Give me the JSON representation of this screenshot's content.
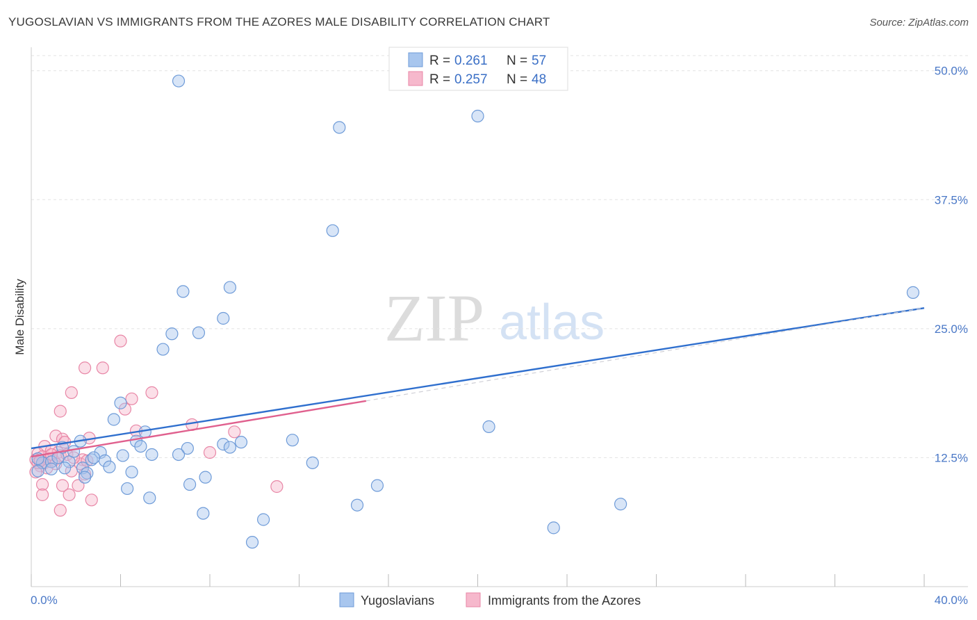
{
  "title": "YUGOSLAVIAN VS IMMIGRANTS FROM THE AZORES MALE DISABILITY CORRELATION CHART",
  "source": "Source: ZipAtlas.com",
  "watermark": {
    "part1": "ZIP",
    "part2": "atlas"
  },
  "colors": {
    "blue_fill": "#a8c6ee",
    "blue_stroke": "#6e9bd8",
    "blue_line": "#2f6fce",
    "pink_fill": "#f6b8cc",
    "pink_stroke": "#e886a6",
    "pink_line": "#e0608e",
    "grid": "#e3e3e3",
    "tick_label": "#4a78c7"
  },
  "legend": {
    "rows": [
      {
        "r_label": "R =",
        "r_value": "0.261",
        "n_label": "N =",
        "n_value": "57"
      },
      {
        "r_label": "R =",
        "r_value": "0.257",
        "n_label": "N =",
        "n_value": "48"
      }
    ]
  },
  "chart_data": {
    "type": "scatter",
    "title": "YUGOSLAVIAN VS IMMIGRANTS FROM THE AZORES MALE DISABILITY CORRELATION CHART",
    "xlabel": "",
    "ylabel": "Male Disability",
    "xlim": [
      0,
      40
    ],
    "ylim": [
      0,
      52
    ],
    "x_tick_labels": [
      "0.0%",
      "40.0%"
    ],
    "y_ticks": [
      12.5,
      25.0,
      37.5,
      50.0
    ],
    "y_tick_labels": [
      "12.5%",
      "25.0%",
      "37.5%",
      "50.0%"
    ],
    "grid": true,
    "legend_position": "top-center",
    "series": [
      {
        "name": "Yugoslavians",
        "color": "#a8c6ee",
        "R": 0.261,
        "N": 57,
        "trend": {
          "x0": 0,
          "y0": 13.4,
          "x1": 40,
          "y1": 27.0
        },
        "points": [
          [
            6.6,
            49.0
          ],
          [
            13.8,
            44.5
          ],
          [
            20.0,
            45.6
          ],
          [
            13.5,
            34.5
          ],
          [
            39.5,
            28.5
          ],
          [
            6.8,
            28.6
          ],
          [
            8.9,
            29.0
          ],
          [
            8.6,
            26.0
          ],
          [
            6.3,
            24.5
          ],
          [
            7.5,
            24.6
          ],
          [
            5.9,
            23.0
          ],
          [
            4.0,
            17.8
          ],
          [
            3.7,
            16.2
          ],
          [
            5.1,
            15.0
          ],
          [
            20.5,
            15.5
          ],
          [
            2.2,
            14.1
          ],
          [
            4.7,
            14.1
          ],
          [
            4.9,
            13.6
          ],
          [
            7.0,
            13.4
          ],
          [
            8.6,
            13.8
          ],
          [
            8.9,
            13.5
          ],
          [
            9.4,
            14.0
          ],
          [
            11.7,
            14.2
          ],
          [
            3.1,
            13.0
          ],
          [
            4.1,
            12.7
          ],
          [
            5.4,
            12.8
          ],
          [
            6.6,
            12.8
          ],
          [
            2.7,
            12.3
          ],
          [
            2.8,
            12.5
          ],
          [
            3.3,
            12.2
          ],
          [
            0.5,
            12.0
          ],
          [
            0.9,
            12.1
          ],
          [
            1.2,
            12.5
          ],
          [
            1.7,
            12.1
          ],
          [
            2.3,
            11.5
          ],
          [
            3.5,
            11.6
          ],
          [
            0.3,
            11.2
          ],
          [
            0.9,
            11.4
          ],
          [
            1.5,
            11.5
          ],
          [
            2.5,
            11.0
          ],
          [
            4.5,
            11.1
          ],
          [
            2.4,
            10.6
          ],
          [
            7.1,
            9.9
          ],
          [
            7.8,
            10.6
          ],
          [
            12.6,
            12.0
          ],
          [
            15.5,
            9.8
          ],
          [
            4.3,
            9.5
          ],
          [
            5.3,
            8.6
          ],
          [
            7.7,
            7.1
          ],
          [
            10.4,
            6.5
          ],
          [
            14.6,
            7.9
          ],
          [
            26.4,
            8.0
          ],
          [
            23.4,
            5.7
          ],
          [
            9.9,
            4.3
          ],
          [
            0.3,
            12.4
          ],
          [
            1.9,
            13.1
          ],
          [
            1.4,
            13.5
          ]
        ]
      },
      {
        "name": "Immigrants from the Azores",
        "color": "#f6b8cc",
        "R": 0.257,
        "N": 48,
        "trend": {
          "x0": 0,
          "y0": 12.6,
          "x1": 15.0,
          "y1": 18.0
        },
        "points": [
          [
            4.0,
            23.8
          ],
          [
            2.4,
            21.2
          ],
          [
            3.2,
            21.2
          ],
          [
            1.8,
            18.8
          ],
          [
            5.4,
            18.8
          ],
          [
            4.5,
            18.2
          ],
          [
            4.2,
            17.2
          ],
          [
            1.3,
            17.0
          ],
          [
            7.2,
            15.7
          ],
          [
            9.1,
            15.0
          ],
          [
            4.7,
            15.1
          ],
          [
            1.1,
            14.6
          ],
          [
            1.4,
            14.3
          ],
          [
            2.6,
            14.4
          ],
          [
            1.5,
            14.0
          ],
          [
            0.6,
            13.6
          ],
          [
            0.9,
            13.2
          ],
          [
            1.2,
            13.0
          ],
          [
            0.3,
            12.9
          ],
          [
            0.5,
            12.6
          ],
          [
            0.8,
            12.4
          ],
          [
            1.0,
            12.2
          ],
          [
            0.2,
            12.3
          ],
          [
            0.6,
            12.0
          ],
          [
            1.3,
            12.7
          ],
          [
            0.4,
            11.7
          ],
          [
            0.7,
            11.5
          ],
          [
            0.2,
            11.1
          ],
          [
            2.3,
            12.3
          ],
          [
            2.2,
            11.9
          ],
          [
            2.5,
            12.2
          ],
          [
            1.6,
            12.8
          ],
          [
            8.0,
            13.0
          ],
          [
            0.5,
            9.9
          ],
          [
            1.4,
            9.8
          ],
          [
            2.1,
            9.8
          ],
          [
            0.5,
            8.9
          ],
          [
            1.7,
            8.9
          ],
          [
            2.7,
            8.4
          ],
          [
            1.3,
            7.4
          ],
          [
            11.0,
            9.7
          ],
          [
            2.4,
            10.9
          ],
          [
            1.8,
            11.2
          ],
          [
            0.3,
            12.0
          ],
          [
            0.9,
            12.8
          ],
          [
            1.1,
            11.9
          ],
          [
            1.9,
            12.5
          ],
          [
            0.4,
            12.2
          ]
        ]
      }
    ]
  }
}
